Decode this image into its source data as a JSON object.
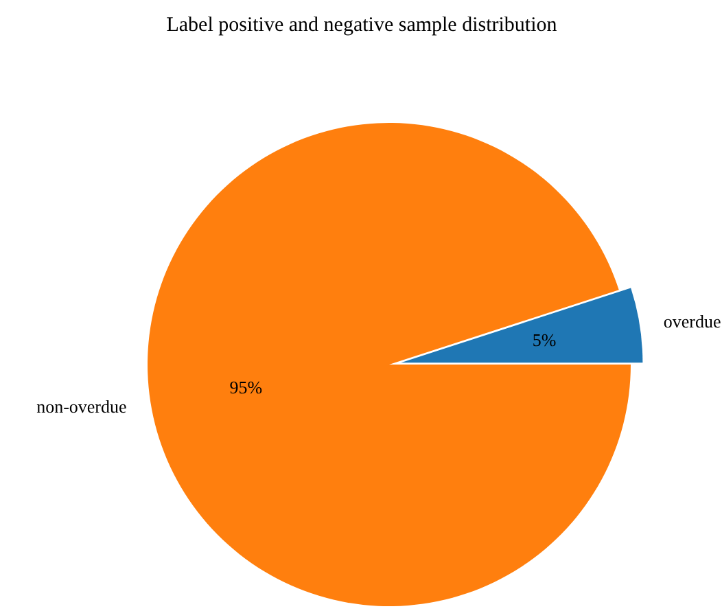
{
  "chart_data": {
    "type": "pie",
    "title": "Label positive and negative sample distribution",
    "categories": [
      "overdue",
      "non-overdue"
    ],
    "values": [
      5,
      95
    ],
    "value_labels": [
      "5%",
      "95%"
    ],
    "colors": [
      "#1f77b4",
      "#ff7f0e"
    ]
  }
}
